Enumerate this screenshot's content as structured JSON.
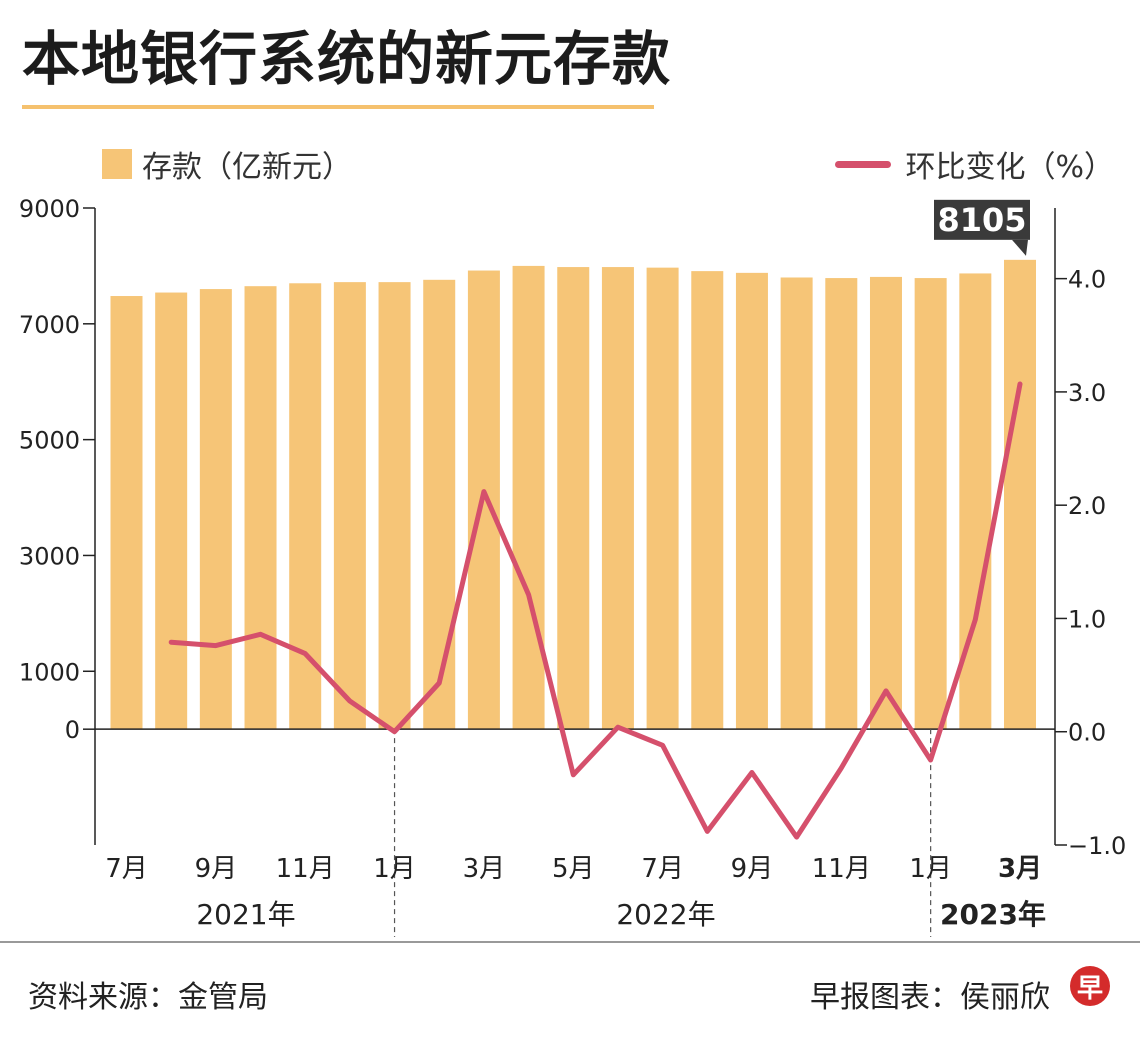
{
  "title": "本地银行系统的新元存款",
  "legend": {
    "bars": "存款（亿新元）",
    "line": "环比变化（%）"
  },
  "colors": {
    "bar": "#f6c577",
    "line": "#d5506c",
    "callout": "#3a3a3a",
    "axis": "#222222"
  },
  "chart_data": {
    "type": "bar+line",
    "title": "本地银行系统的新元存款",
    "categories": [
      "2021-07",
      "2021-08",
      "2021-09",
      "2021-10",
      "2021-11",
      "2021-12",
      "2022-01",
      "2022-02",
      "2022-03",
      "2022-04",
      "2022-05",
      "2022-06",
      "2022-07",
      "2022-08",
      "2022-09",
      "2022-10",
      "2022-11",
      "2022-12",
      "2023-01",
      "2023-02",
      "2023-03"
    ],
    "tick_labels": [
      "7月",
      "",
      "9月",
      "",
      "11月",
      "",
      "1月",
      "",
      "3月",
      "",
      "5月",
      "",
      "7月",
      "",
      "9月",
      "",
      "11月",
      "",
      "1月",
      "",
      "3月"
    ],
    "year_labels": [
      {
        "label": "2021年",
        "bold": false
      },
      {
        "label": "2022年",
        "bold": false
      },
      {
        "label": "2023年",
        "bold": true
      }
    ],
    "series": [
      {
        "name": "存款（亿新元）",
        "type": "bar",
        "axis": "left",
        "values": [
          7480,
          7540,
          7600,
          7650,
          7700,
          7720,
          7720,
          7760,
          7920,
          8000,
          7980,
          7980,
          7970,
          7910,
          7880,
          7800,
          7790,
          7810,
          7790,
          7870,
          8105
        ]
      },
      {
        "name": "环比变化（%）",
        "type": "line",
        "axis": "right",
        "values": [
          null,
          0.79,
          0.76,
          0.86,
          0.69,
          0.27,
          0.0,
          0.43,
          2.12,
          1.21,
          -0.38,
          0.04,
          -0.12,
          -0.88,
          -0.36,
          -0.93,
          -0.32,
          0.36,
          -0.25,
          0.99,
          3.07
        ]
      }
    ],
    "left_axis": {
      "min": -2000,
      "max": 9000,
      "ticks": [
        0,
        1000,
        3000,
        5000,
        7000,
        9000
      ]
    },
    "right_axis": {
      "min": -1.0,
      "max": 4.5,
      "ticks": [
        "-1.0",
        "0.0",
        "1.0",
        "2.0",
        "3.0",
        "4.0"
      ]
    },
    "annotation": {
      "label": "8105",
      "index": 20
    },
    "bold_ticks": [
      "3月"
    ]
  },
  "footer": {
    "source": "资料来源：金管局",
    "credit": "早报图表：侯丽欣",
    "logo": "早"
  }
}
